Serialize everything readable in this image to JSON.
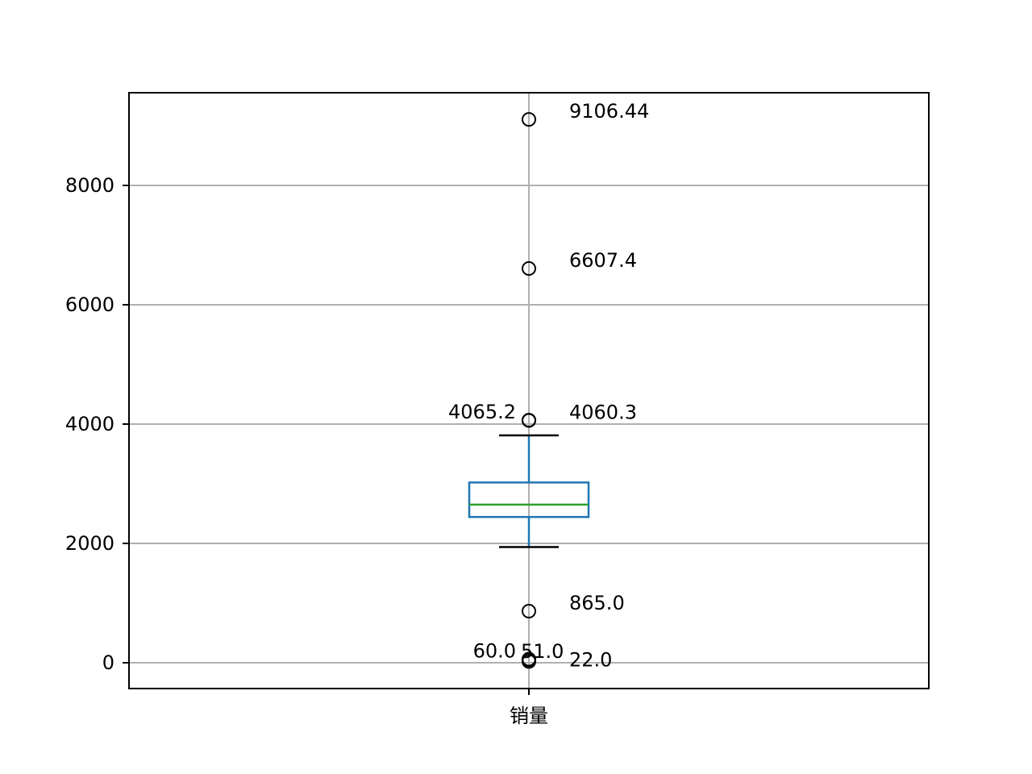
{
  "chart_data": {
    "type": "box",
    "categories": [
      "销量"
    ],
    "ylim": [
      -430,
      9570
    ],
    "yticks": [
      0,
      2000,
      4000,
      6000,
      8000
    ],
    "ytick_labels": [
      "0",
      "2000",
      "4000",
      "6000",
      "8000"
    ],
    "grid": true,
    "box": {
      "q1": 2443,
      "median": 2651,
      "q3": 3021,
      "whisker_low": 1940,
      "whisker_high": 3810
    },
    "outliers": [
      9106.44,
      6607.4,
      4065.2,
      4060.3,
      865.0,
      60.0,
      51.0,
      22.0
    ],
    "annotations": [
      {
        "value": 9106.44,
        "text": "9106.44",
        "side": "right"
      },
      {
        "value": 6607.4,
        "text": "6607.4",
        "side": "right"
      },
      {
        "value": 4065.2,
        "text": "4065.2",
        "side": "left"
      },
      {
        "value": 4060.3,
        "text": "4060.3",
        "side": "right"
      },
      {
        "value": 865.0,
        "text": "865.0",
        "side": "right"
      },
      {
        "value": 60.0,
        "text": "60.0",
        "side": "left"
      },
      {
        "value": 51.0,
        "text": "51.0",
        "side": "right-near"
      },
      {
        "value": 22.0,
        "text": "22.0",
        "side": "right"
      }
    ],
    "colors": {
      "box": "#1f77b4",
      "median": "#2ca02c",
      "whisker": "#1f77b4",
      "caps": "#000000",
      "fliers": "#000000",
      "grid": "#b0b0b0"
    }
  }
}
